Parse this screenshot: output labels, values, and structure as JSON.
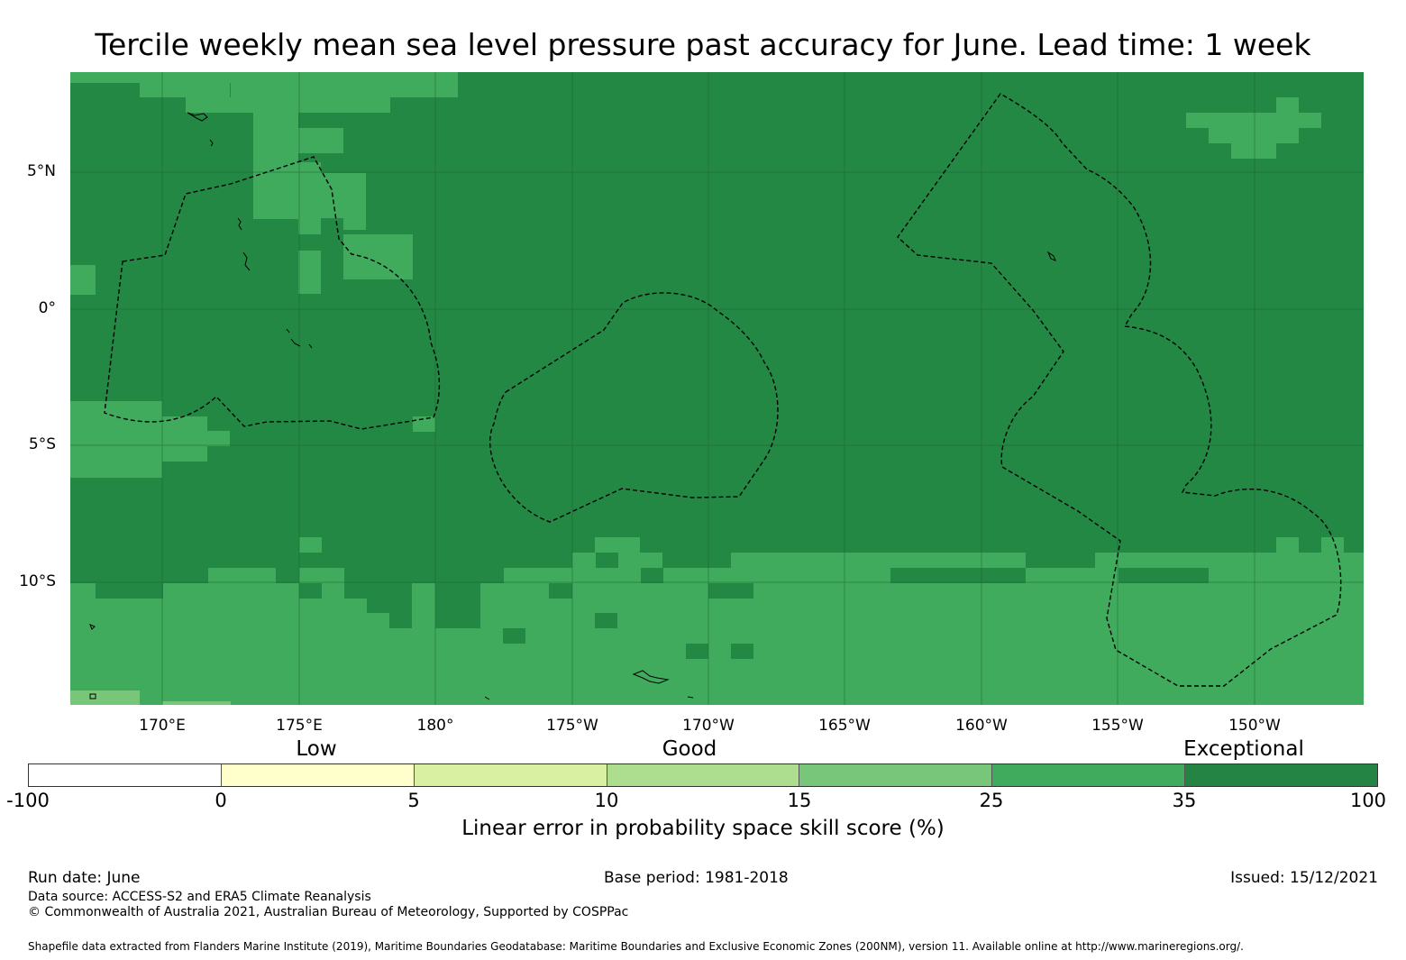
{
  "title": "Tercile weekly mean sea level pressure past accuracy for June. Lead time: 1 week",
  "latitude_labels": [
    "5°N",
    "0°",
    "5°S",
    "10°S"
  ],
  "longitude_labels": [
    "170°E",
    "175°E",
    "180°",
    "175°W",
    "170°W",
    "165°W",
    "160°W",
    "155°W",
    "150°W"
  ],
  "category_labels": {
    "low": "Low",
    "good": "Good",
    "exceptional": "Exceptional"
  },
  "colorbar": {
    "ticks": [
      "-100",
      "0",
      "5",
      "10",
      "15",
      "25",
      "35",
      "100"
    ],
    "colors": [
      "#ffffff",
      "#ffffcc",
      "#d9f0a3",
      "#addd8e",
      "#78c679",
      "#41ab5d",
      "#238443"
    ],
    "label": "Linear error in probability space skill score (%)"
  },
  "map_colors": {
    "exceptional": "#248845",
    "high": "#41ab5d",
    "medium": "#78c679",
    "eez_line": "#000000"
  },
  "footer": {
    "run_date": "Run date: June",
    "base_period": "Base period: 1981-2018",
    "issued": "Issued: 15/12/2021",
    "data_source": "Data source: ACCESS-S2 and ERA5 Climate Reanalysis",
    "copyright": "© Commonwealth of Australia 2021, Australian Bureau of Meteorology, Supported by COSPPac",
    "shapefile": "Shapefile data extracted from Flanders Marine Institute (2019), Maritime Boundaries Geodatabase: Maritime Boundaries and Exclusive Economic Zones (200NM), version 11. Available online at http://www.marineregions.org/."
  }
}
